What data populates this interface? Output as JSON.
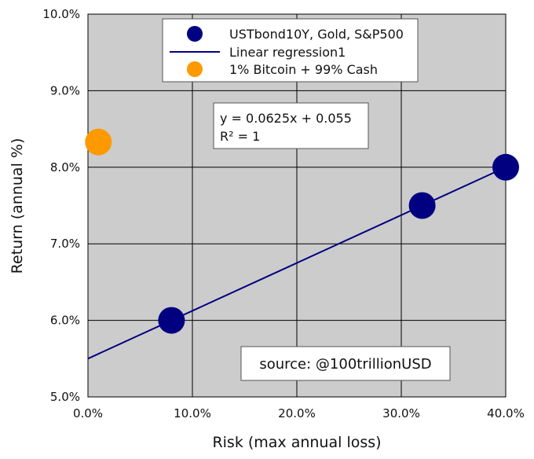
{
  "chart_data": {
    "type": "scatter",
    "xlabel": "Risk (max annual loss)",
    "ylabel": "Return (annual %)",
    "xlim": [
      0,
      40
    ],
    "ylim": [
      5,
      10
    ],
    "x_ticks": [
      "0.0%",
      "10.0%",
      "20.0%",
      "30.0%",
      "40.0%"
    ],
    "y_ticks": [
      "5.0%",
      "6.0%",
      "7.0%",
      "8.0%",
      "9.0%",
      "10.0%"
    ],
    "grid": true,
    "legend_position": "top-center",
    "series": [
      {
        "name": "USTbond10Y, Gold, S&P500",
        "kind": "points",
        "color": "#000080",
        "x": [
          8,
          32,
          40
        ],
        "y": [
          6.0,
          7.5,
          8.0
        ]
      },
      {
        "name": "Linear regression1",
        "kind": "line",
        "color": "#000080",
        "slope": 0.0625,
        "intercept": 5.5,
        "x": [
          0,
          40
        ],
        "y": [
          5.5,
          8.0
        ]
      },
      {
        "name": "1% Bitcoin + 99% Cash",
        "kind": "points",
        "color": "#FF9900",
        "x": [
          1
        ],
        "y": [
          8.33
        ]
      }
    ],
    "annotations": {
      "equation": "y = 0.0625x + 0.055",
      "r_squared": "R² = 1",
      "source": "source: @100trillionUSD"
    },
    "colors": {
      "plot_background": "#CCCCCC",
      "grid": "#000000",
      "navy": "#000080",
      "orange": "#FF9900"
    }
  }
}
